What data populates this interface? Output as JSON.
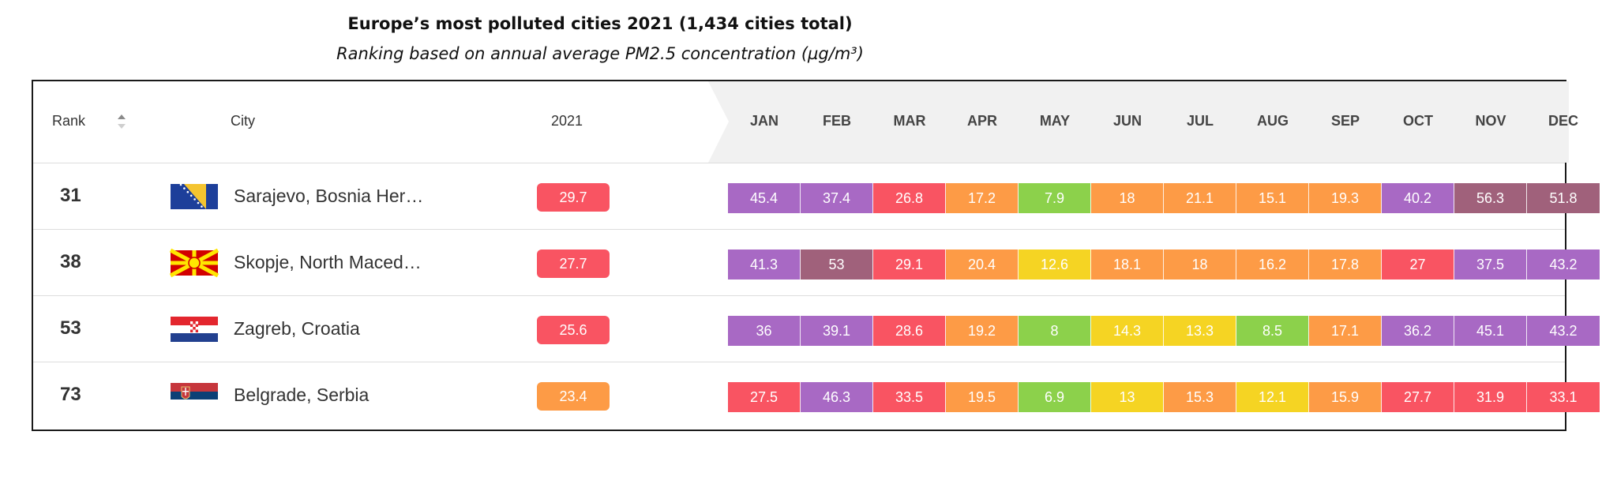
{
  "chart_data": {
    "type": "table",
    "title": "Europe’s most polluted cities 2021 (1,434 cities total)",
    "subtitle": "Ranking based on annual average PM2.5 concentration (µg/m³)",
    "headers": {
      "rank": "Rank",
      "city": "City",
      "year": "2021",
      "months": [
        "JAN",
        "FEB",
        "MAR",
        "APR",
        "MAY",
        "JUN",
        "JUL",
        "AUG",
        "SEP",
        "OCT",
        "NOV",
        "DEC"
      ]
    },
    "rows": [
      {
        "rank": "31",
        "city": "Sarajevo, Bosnia Her…",
        "flag": "bosnia-herzegovina",
        "annual": "29.7",
        "months": [
          "45.4",
          "37.4",
          "26.8",
          "17.2",
          "7.9",
          "18",
          "21.1",
          "15.1",
          "19.3",
          "40.2",
          "56.3",
          "51.8"
        ]
      },
      {
        "rank": "38",
        "city": "Skopje, North Maced…",
        "flag": "north-macedonia",
        "annual": "27.7",
        "months": [
          "41.3",
          "53",
          "29.1",
          "20.4",
          "12.6",
          "18.1",
          "18",
          "16.2",
          "17.8",
          "27",
          "37.5",
          "43.2"
        ]
      },
      {
        "rank": "53",
        "city": "Zagreb, Croatia",
        "flag": "croatia",
        "annual": "25.6",
        "months": [
          "36",
          "39.1",
          "28.6",
          "19.2",
          "8",
          "14.3",
          "13.3",
          "8.5",
          "17.1",
          "36.2",
          "45.1",
          "43.2"
        ]
      },
      {
        "rank": "73",
        "city": "Belgrade, Serbia",
        "flag": "serbia",
        "annual": "23.4",
        "months": [
          "27.5",
          "46.3",
          "33.5",
          "19.5",
          "6.9",
          "13",
          "15.3",
          "12.1",
          "15.9",
          "27.7",
          "31.9",
          "33.1"
        ]
      }
    ],
    "color_scale": {
      "green": "#8cd14b",
      "yellow": "#f5d423",
      "orange": "#fd9b46",
      "red": "#f95462",
      "purple": "#a869c4",
      "maroon": "#a0617b"
    }
  }
}
